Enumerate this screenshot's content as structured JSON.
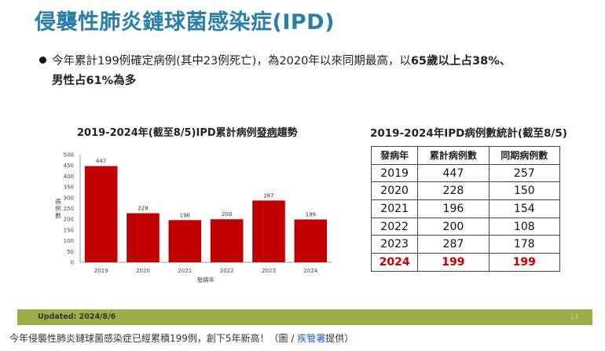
{
  "slide": {
    "title": "侵襲性肺炎鏈球菌感染症(IPD)",
    "bullet": {
      "line1_a": "今年累計199例確定病例(其中23例死亡)，為2020年以來同期最高，以",
      "line1_b": "65歲以上占38%、",
      "line2": "男性占61%為多"
    },
    "updated": "Updated: 2024/8/6",
    "page_number": "13"
  },
  "chart_title": {
    "part1": "2019-2024年(截至8/5)IPD累計病例",
    "part2": "發病",
    "part3": "趨勢"
  },
  "chart_data": {
    "type": "bar",
    "categories": [
      "2019",
      "2020",
      "2021",
      "2022",
      "2023",
      "2024"
    ],
    "values": [
      447,
      228,
      196,
      200,
      287,
      199
    ],
    "ylim": [
      0,
      500
    ],
    "yticks": [
      0,
      50,
      100,
      150,
      200,
      250,
      300,
      350,
      400,
      450,
      500
    ],
    "xlabel": "發病年",
    "ylabel": "病例數",
    "bar_color": "#c00000",
    "grid": false,
    "legend": "none"
  },
  "stats_table": {
    "title": "2019-2024年IPD病例數統計(截至8/5)",
    "headers": [
      "發病年",
      "累計病例數",
      "同期病例數"
    ],
    "rows": [
      [
        "2019",
        "447",
        "257"
      ],
      [
        "2020",
        "228",
        "150"
      ],
      [
        "2021",
        "196",
        "154"
      ],
      [
        "2022",
        "200",
        "108"
      ],
      [
        "2023",
        "287",
        "178"
      ],
      [
        "2024",
        "199",
        "199"
      ]
    ],
    "highlight_row": "2024",
    "highlight_color": "#c00000"
  },
  "caption": {
    "text_a": "今年侵襲性肺炎鏈球菌感染症已經累積199例，創下5年新高！（圖 / ",
    "link": "疾管署",
    "text_b": "提供）"
  }
}
